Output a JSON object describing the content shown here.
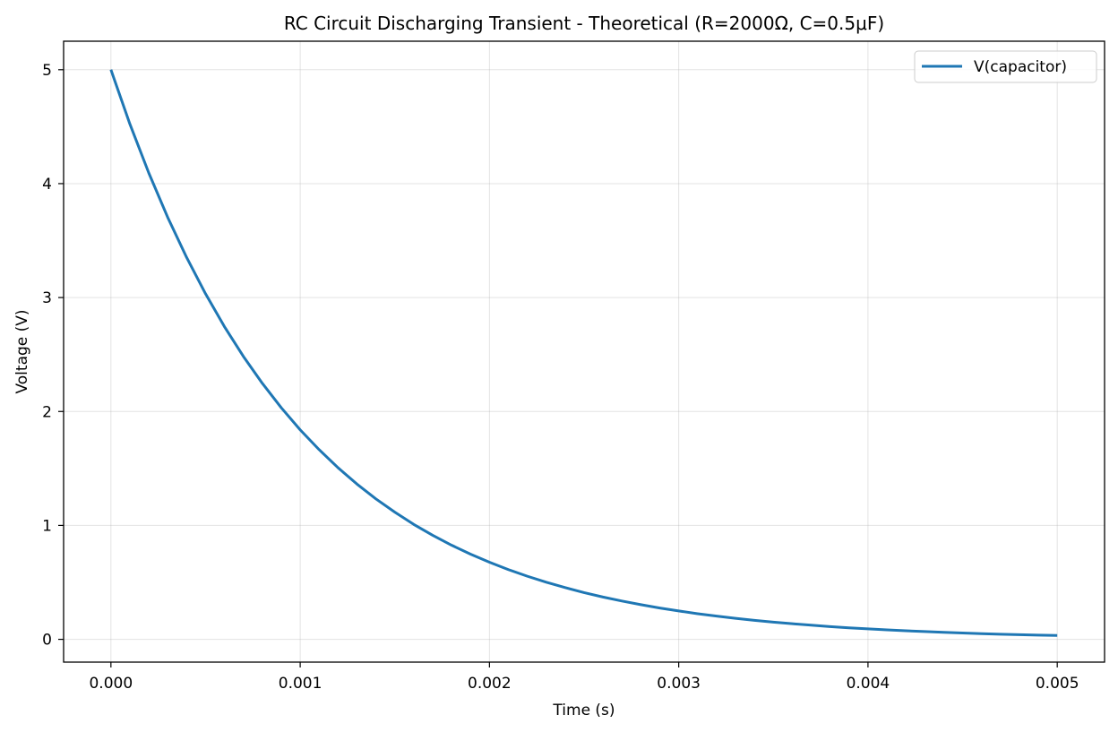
{
  "chart_data": {
    "type": "line",
    "title": "RC Circuit Discharging Transient - Theoretical (R=2000Ω, C=0.5μF)",
    "xlabel": "Time (s)",
    "ylabel": "Voltage (V)",
    "xlim": [
      -0.00025,
      0.00525
    ],
    "ylim": [
      -0.2,
      5.25
    ],
    "x_ticks": [
      0,
      0.001,
      0.002,
      0.003,
      0.004,
      0.005
    ],
    "x_tick_labels": [
      "0.000",
      "0.001",
      "0.002",
      "0.003",
      "0.004",
      "0.005"
    ],
    "y_ticks": [
      0,
      1,
      2,
      3,
      4,
      5
    ],
    "y_tick_labels": [
      "0",
      "1",
      "2",
      "3",
      "4",
      "5"
    ],
    "grid": true,
    "legend_position": "top-right",
    "series": [
      {
        "name": "V(capacitor)",
        "color": "#1f77b4",
        "x": [
          0,
          0.0001,
          0.0002,
          0.0003,
          0.0004,
          0.0005,
          0.0006,
          0.0007,
          0.0008,
          0.0009,
          0.001,
          0.0011,
          0.0012,
          0.0013,
          0.0014,
          0.0015,
          0.0016,
          0.0017,
          0.0018,
          0.0019,
          0.002,
          0.0021,
          0.0022,
          0.0023,
          0.0024,
          0.0025,
          0.0026,
          0.0027,
          0.0028,
          0.0029,
          0.003,
          0.0031,
          0.0032,
          0.0033,
          0.0034,
          0.0035,
          0.0036,
          0.0037,
          0.0038,
          0.0039,
          0.004,
          0.0041,
          0.0042,
          0.0043,
          0.0044,
          0.0045,
          0.0046,
          0.0047,
          0.0048,
          0.0049,
          0.005
        ],
        "y": [
          5.0,
          4.524,
          4.094,
          3.704,
          3.352,
          3.033,
          2.744,
          2.483,
          2.247,
          2.033,
          1.839,
          1.665,
          1.506,
          1.363,
          1.233,
          1.116,
          1.009,
          0.913,
          0.826,
          0.748,
          0.677,
          0.612,
          0.554,
          0.501,
          0.454,
          0.41,
          0.371,
          0.336,
          0.304,
          0.275,
          0.249,
          0.225,
          0.204,
          0.184,
          0.167,
          0.151,
          0.137,
          0.124,
          0.112,
          0.101,
          0.092,
          0.083,
          0.075,
          0.068,
          0.061,
          0.056,
          0.05,
          0.045,
          0.041,
          0.037,
          0.034
        ]
      }
    ]
  }
}
